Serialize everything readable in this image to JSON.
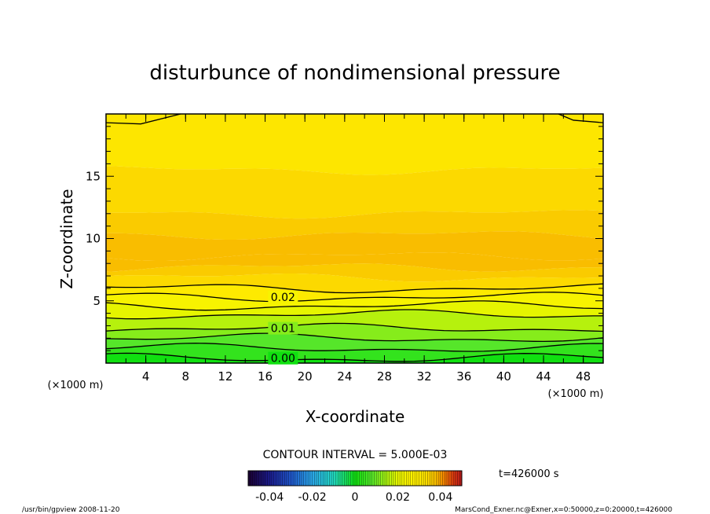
{
  "chart_data": {
    "type": "heatmap",
    "title": "disturbunce of nondimensional pressure",
    "xlabel": "X-coordinate",
    "ylabel": "Z-coordinate",
    "x_unit": "(×1000 m)",
    "y_unit": "(×1000 m)",
    "xlim": [
      0,
      50
    ],
    "ylim": [
      0,
      20
    ],
    "x_ticks": [
      "4",
      "8",
      "12",
      "16",
      "20",
      "24",
      "28",
      "32",
      "36",
      "40",
      "44",
      "48"
    ],
    "y_ticks": [
      "5",
      "10",
      "15"
    ],
    "contour_interval_label": "CONTOUR INTERVAL = 5.000E-03",
    "contour_labels": [
      "0.02",
      "0.01",
      "0.00"
    ],
    "contours": [
      {
        "label": "0.02",
        "z": 5.3
      },
      {
        "label": "0.01",
        "z": 2.8
      },
      {
        "label": "0.00",
        "z": 0.4
      }
    ],
    "bands_z": [
      {
        "z_top": 20.0,
        "value": 0.032
      },
      {
        "z_top": 15.5,
        "value": 0.034
      },
      {
        "z_top": 12.0,
        "value": 0.036
      },
      {
        "z_top": 10.3,
        "value": 0.038
      },
      {
        "z_top": 8.6,
        "value": 0.038
      },
      {
        "z_top": 7.7,
        "value": 0.036
      },
      {
        "z_top": 6.9,
        "value": 0.034
      },
      {
        "z_top": 6.0,
        "value": 0.03
      },
      {
        "z_top": 5.3,
        "value": 0.024
      },
      {
        "z_top": 4.6,
        "value": 0.02
      },
      {
        "z_top": 3.9,
        "value": 0.016
      },
      {
        "z_top": 2.8,
        "value": 0.012
      },
      {
        "z_top": 2.0,
        "value": 0.008
      },
      {
        "z_top": 1.2,
        "value": 0.004
      },
      {
        "z_top": 0.4,
        "value": 0.0
      }
    ],
    "colorbar": {
      "range": [
        -0.05,
        0.05
      ],
      "tick_labels": [
        "-0.04",
        "-0.02",
        "0",
        "0.02",
        "0.04"
      ],
      "tick_values": [
        -0.04,
        -0.02,
        0,
        0.02,
        0.04
      ]
    },
    "time_label": "t=426000  s"
  },
  "footer": {
    "left": "/usr/bin/gpview  2008-11-20",
    "right": "MarsCond_Exner.nc@Exner,x=0:50000,z=0:20000,t=426000"
  }
}
